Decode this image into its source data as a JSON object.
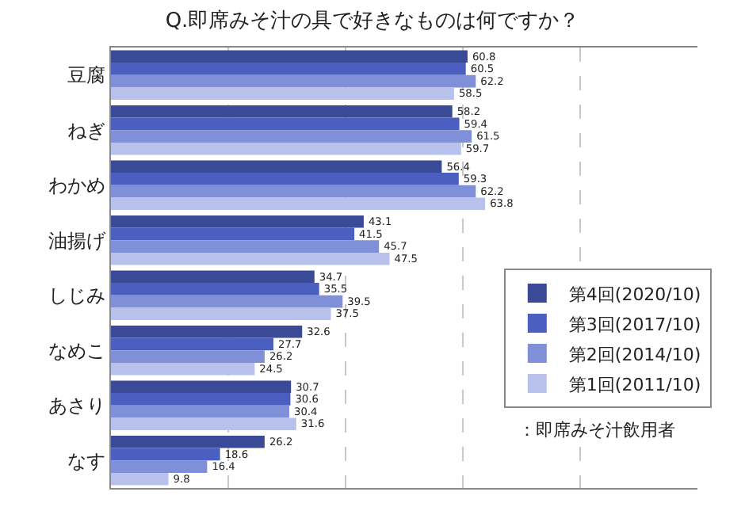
{
  "chart_data": {
    "type": "bar",
    "orientation": "horizontal",
    "title": "Q.即席みそ汁の具で好きなものは何ですか？",
    "categories": [
      "豆腐",
      "ねぎ",
      "わかめ",
      "油揚げ",
      "しじみ",
      "なめこ",
      "あさり",
      "なす"
    ],
    "series": [
      {
        "name": "第4回(2020/10)",
        "color": "#3a4a96",
        "values": [
          60.8,
          58.2,
          56.4,
          43.1,
          34.7,
          32.6,
          30.7,
          26.2
        ]
      },
      {
        "name": "第3回(2017/10)",
        "color": "#4a5fc0",
        "values": [
          60.5,
          59.4,
          59.3,
          41.5,
          35.5,
          27.7,
          30.6,
          18.6
        ]
      },
      {
        "name": "第2回(2014/10)",
        "color": "#7f8fd8",
        "values": [
          62.2,
          61.5,
          62.2,
          45.7,
          39.5,
          26.2,
          30.4,
          16.4
        ]
      },
      {
        "name": "第1回(2011/10)",
        "color": "#b8c0ec",
        "values": [
          58.5,
          59.7,
          63.8,
          47.5,
          37.5,
          24.5,
          31.6,
          9.8
        ]
      }
    ],
    "xlim": [
      0,
      100
    ],
    "tick_labels": "y",
    "grid": "x",
    "data_labels": true,
    "legend": "right",
    "annotations": [
      "：即席みそ汁飲用者"
    ]
  }
}
